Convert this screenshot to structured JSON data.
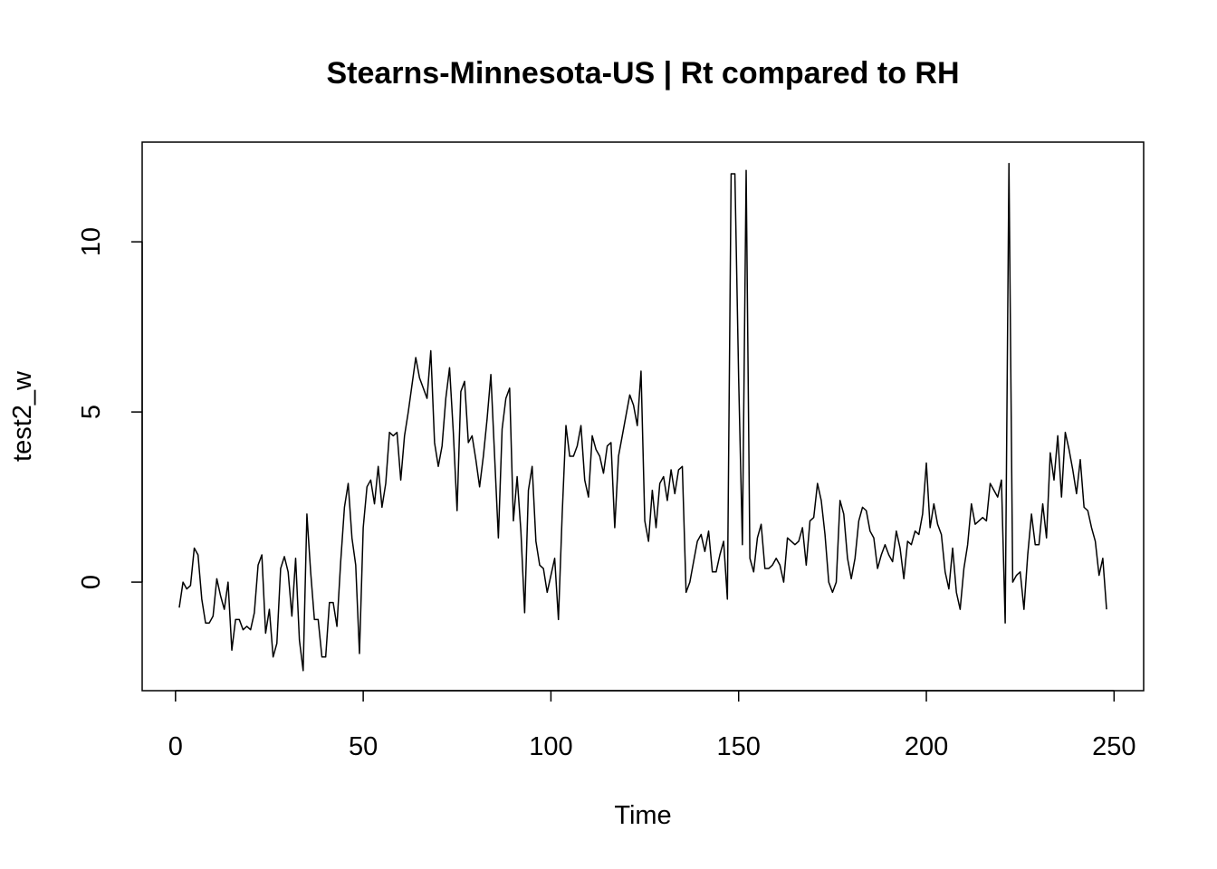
{
  "chart_data": {
    "type": "line",
    "title": "Stearns-Minnesota-US | Rt compared to RH",
    "x_label": "Time",
    "y_label": "test2_w",
    "color": "#000000",
    "x": [
      1,
      2,
      3,
      4,
      5,
      6,
      7,
      8,
      9,
      10,
      11,
      12,
      13,
      14,
      15,
      16,
      17,
      18,
      19,
      20,
      21,
      22,
      23,
      24,
      25,
      26,
      27,
      28,
      29,
      30,
      31,
      32,
      33,
      34,
      35,
      36,
      37,
      38,
      39,
      40,
      41,
      42,
      43,
      44,
      45,
      46,
      47,
      48,
      49,
      50,
      51,
      52,
      53,
      54,
      55,
      56,
      57,
      58,
      59,
      60,
      61,
      62,
      63,
      64,
      65,
      66,
      67,
      68,
      69,
      70,
      71,
      72,
      73,
      74,
      75,
      76,
      77,
      78,
      79,
      80,
      81,
      82,
      83,
      84,
      85,
      86,
      87,
      88,
      89,
      90,
      91,
      92,
      93,
      94,
      95,
      96,
      97,
      98,
      99,
      100,
      101,
      102,
      103,
      104,
      105,
      106,
      107,
      108,
      109,
      110,
      111,
      112,
      113,
      114,
      115,
      116,
      117,
      118,
      119,
      120,
      121,
      122,
      123,
      124,
      125,
      126,
      127,
      128,
      129,
      130,
      131,
      132,
      133,
      134,
      135,
      136,
      137,
      138,
      139,
      140,
      141,
      142,
      143,
      144,
      145,
      146,
      147,
      148,
      149,
      150,
      151,
      152,
      153,
      154,
      155,
      156,
      157,
      158,
      159,
      160,
      161,
      162,
      163,
      164,
      165,
      166,
      167,
      168,
      169,
      170,
      171,
      172,
      173,
      174,
      175,
      176,
      177,
      178,
      179,
      180,
      181,
      182,
      183,
      184,
      185,
      186,
      187,
      188,
      189,
      190,
      191,
      192,
      193,
      194,
      195,
      196,
      197,
      198,
      199,
      200,
      201,
      202,
      203,
      204,
      205,
      206,
      207,
      208,
      209,
      210,
      211,
      212,
      213,
      214,
      215,
      216,
      217,
      218,
      219,
      220,
      221,
      222,
      223,
      224,
      225,
      226,
      227,
      228,
      229,
      230,
      231,
      232,
      233,
      234,
      235,
      236,
      237,
      238,
      239,
      240,
      241,
      242,
      243,
      244,
      245,
      246,
      247,
      248
    ],
    "values": [
      -0.75,
      0,
      -0.2,
      -0.1,
      1.0,
      0.8,
      -0.5,
      -1.2,
      -1.2,
      -1.0,
      0.1,
      -0.4,
      -0.8,
      0.0,
      -2.0,
      -1.1,
      -1.1,
      -1.4,
      -1.3,
      -1.4,
      -0.9,
      0.5,
      0.8,
      -1.5,
      -0.8,
      -2.2,
      -1.8,
      0.4,
      0.75,
      0.3,
      -1.0,
      0.7,
      -1.7,
      -2.6,
      2.0,
      0.3,
      -1.1,
      -1.1,
      -2.2,
      -2.2,
      -0.6,
      -0.6,
      -1.3,
      0.6,
      2.2,
      2.9,
      1.3,
      0.5,
      -2.1,
      1.6,
      2.8,
      3.0,
      2.3,
      3.4,
      2.2,
      2.9,
      4.4,
      4.3,
      4.4,
      3.0,
      4.3,
      5.0,
      5.8,
      6.6,
      6.0,
      5.7,
      5.4,
      6.8,
      4.1,
      3.4,
      4.0,
      5.4,
      6.3,
      4.4,
      2.1,
      5.6,
      5.9,
      4.1,
      4.3,
      3.6,
      2.8,
      3.7,
      4.8,
      6.1,
      3.7,
      1.3,
      4.5,
      5.4,
      5.7,
      1.8,
      3.1,
      1.5,
      -0.9,
      2.7,
      3.4,
      1.2,
      0.5,
      0.4,
      -0.3,
      0.2,
      0.7,
      -1.1,
      2.0,
      4.6,
      3.7,
      3.7,
      4.0,
      4.6,
      3.0,
      2.5,
      4.3,
      3.9,
      3.7,
      3.2,
      4.0,
      4.1,
      1.6,
      3.7,
      4.3,
      4.9,
      5.5,
      5.2,
      4.6,
      6.2,
      1.8,
      1.2,
      2.7,
      1.6,
      2.9,
      3.1,
      2.4,
      3.3,
      2.6,
      3.3,
      3.4,
      -0.3,
      0.0,
      0.6,
      1.2,
      1.4,
      0.9,
      1.5,
      0.3,
      0.3,
      0.8,
      1.2,
      -0.5,
      12.0,
      12.0,
      6.0,
      1.1,
      12.1,
      0.7,
      0.3,
      1.3,
      1.7,
      0.4,
      0.4,
      0.5,
      0.7,
      0.5,
      0.0,
      1.3,
      1.2,
      1.1,
      1.2,
      1.6,
      0.5,
      1.8,
      1.9,
      2.9,
      2.4,
      1.4,
      0.0,
      -0.3,
      0.0,
      2.4,
      2.0,
      0.7,
      0.1,
      0.7,
      1.8,
      2.2,
      2.1,
      1.5,
      1.3,
      0.4,
      0.8,
      1.1,
      0.8,
      0.6,
      1.5,
      1.0,
      0.1,
      1.2,
      1.1,
      1.5,
      1.4,
      2.0,
      3.5,
      1.6,
      2.3,
      1.7,
      1.4,
      0.3,
      -0.2,
      1.0,
      -0.3,
      -0.8,
      0.4,
      1.1,
      2.3,
      1.7,
      1.8,
      1.9,
      1.8,
      2.9,
      2.7,
      2.5,
      3.0,
      -1.2,
      12.3,
      0.0,
      0.2,
      0.3,
      -0.8,
      0.8,
      2.0,
      1.1,
      1.1,
      2.3,
      1.3,
      3.8,
      3.0,
      4.3,
      2.5,
      4.4,
      3.9,
      3.3,
      2.6,
      3.6,
      2.2,
      2.1,
      1.6,
      1.2,
      0.2,
      0.7,
      -0.8
    ],
    "xlim": [
      -8.88,
      257.88
    ],
    "ylim": [
      -3.19,
      12.93
    ],
    "xticks": [
      0,
      50,
      100,
      150,
      200,
      250
    ],
    "yticks": [
      0,
      5,
      10
    ]
  }
}
